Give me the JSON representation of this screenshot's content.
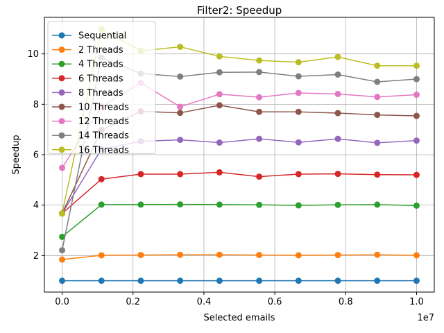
{
  "chart_data": {
    "type": "line",
    "title": "Filter2: Speedup",
    "xlabel": "Selected emails",
    "ylabel": "Speedup",
    "x_offset_label": "1e7",
    "xlim": [
      -0.05,
      1.05
    ],
    "ylim": [
      0.55,
      11.45
    ],
    "grid": true,
    "legend_position": "upper-left",
    "x_ticks": [
      0.0,
      0.2,
      0.4,
      0.6,
      0.8,
      1.0
    ],
    "x_tick_labels": [
      "0.0",
      "0.2",
      "0.4",
      "0.6",
      "0.8",
      "1.0"
    ],
    "y_ticks": [
      2,
      4,
      6,
      8,
      10
    ],
    "y_tick_labels": [
      "2",
      "4",
      "6",
      "8",
      "10"
    ],
    "x": [
      0.0,
      0.111,
      0.222,
      0.333,
      0.444,
      0.556,
      0.667,
      0.778,
      0.889,
      1.0
    ],
    "series": [
      {
        "name": "Sequential",
        "color": "#1f77b4",
        "values": [
          1.0,
          1.0,
          1.0,
          1.0,
          1.0,
          1.0,
          1.0,
          1.0,
          1.0,
          1.0
        ]
      },
      {
        "name": "2 Threads",
        "color": "#ff7f0e",
        "values": [
          1.84,
          2.01,
          2.02,
          2.03,
          2.03,
          2.02,
          2.01,
          2.02,
          2.03,
          2.01
        ]
      },
      {
        "name": "4 Threads",
        "color": "#2ca02c",
        "values": [
          2.74,
          4.02,
          4.02,
          4.03,
          4.02,
          4.01,
          3.99,
          4.01,
          4.02,
          3.98
        ]
      },
      {
        "name": "6 Threads",
        "color": "#d62728",
        "values": [
          3.67,
          5.03,
          5.23,
          5.23,
          5.3,
          5.13,
          5.23,
          5.24,
          5.21,
          5.2
        ]
      },
      {
        "name": "8 Threads",
        "color": "#9467bd",
        "values": [
          3.67,
          6.22,
          6.53,
          6.59,
          6.48,
          6.63,
          6.49,
          6.63,
          6.47,
          6.56
        ]
      },
      {
        "name": "10 Threads",
        "color": "#8c564b",
        "values": [
          3.67,
          6.98,
          7.72,
          7.66,
          7.96,
          7.7,
          7.7,
          7.65,
          7.58,
          7.54
        ]
      },
      {
        "name": "12 Threads",
        "color": "#e377c2",
        "values": [
          5.48,
          7.92,
          8.85,
          7.9,
          8.4,
          8.28,
          8.45,
          8.41,
          8.29,
          8.38
        ]
      },
      {
        "name": "14 Threads",
        "color": "#7f7f7f",
        "values": [
          2.21,
          9.85,
          9.22,
          9.1,
          9.27,
          9.28,
          9.11,
          9.18,
          8.89,
          9.0
        ]
      },
      {
        "name": "16 Threads",
        "color": "#bcbd22",
        "values": [
          3.67,
          10.98,
          10.12,
          10.28,
          9.9,
          9.74,
          9.67,
          9.88,
          9.53,
          9.53
        ]
      }
    ]
  }
}
